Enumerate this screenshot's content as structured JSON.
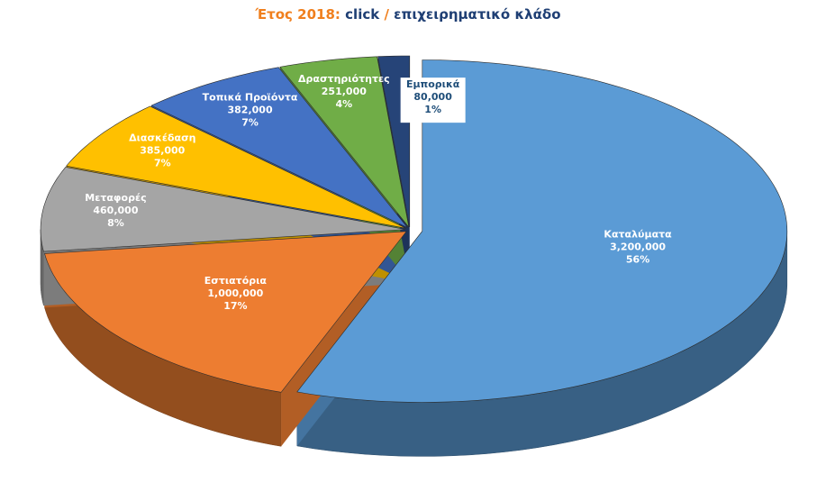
{
  "chart_data": {
    "type": "pie",
    "title": [
      "Έτος 2018:",
      "click",
      "/",
      "επιχειρηματικό κλάδο"
    ],
    "categories": [
      "Καταλύματα",
      "Εστιατόρια",
      "Μεταφορές",
      "Διασκέδαση",
      "Τοπικά Προϊόντα",
      "Δραστηριότητες",
      "Εμπορικά"
    ],
    "values": [
      3200000,
      1000000,
      460000,
      385000,
      382000,
      251000,
      80000
    ],
    "value_labels": [
      "3,200,000",
      "1,000,000",
      "460,000",
      "385,000",
      "382,000",
      "251,000",
      "80,000"
    ],
    "percent_labels": [
      "56%",
      "17%",
      "8%",
      "7%",
      "7%",
      "4%",
      "1%"
    ],
    "colors": [
      "#5b9bd5",
      "#ed7d31",
      "#a5a5a5",
      "#ffc000",
      "#4472c4",
      "#70ad47",
      "#264478"
    ]
  }
}
